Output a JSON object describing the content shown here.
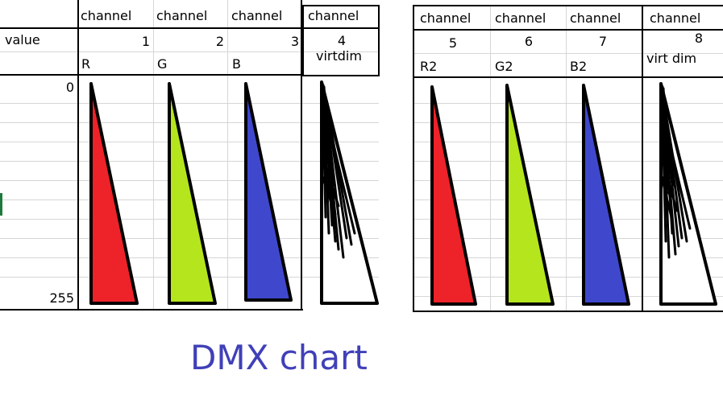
{
  "title": "DMX chart",
  "row_labels": {
    "value": "value",
    "min": "0",
    "max": "255"
  },
  "colors": {
    "red": "#ee2229",
    "green": "#b5e51d",
    "blue": "#3f48cc",
    "white": "#ffffff",
    "title": "#4040b8"
  },
  "channels": [
    {
      "header": "channel",
      "number": "1",
      "label": "R",
      "color": "red"
    },
    {
      "header": "channel",
      "number": "2",
      "label": "G",
      "color": "green"
    },
    {
      "header": "channel",
      "number": "3",
      "label": "B",
      "color": "blue"
    },
    {
      "header": "channel",
      "number": "4",
      "label": "virtdim",
      "color": "white"
    },
    {
      "header": "channel",
      "number": "5",
      "label": "R2",
      "color": "red"
    },
    {
      "header": "channel",
      "number": "6",
      "label": "G2",
      "color": "green"
    },
    {
      "header": "channel",
      "number": "7",
      "label": "B2",
      "color": "blue"
    },
    {
      "header": "channel",
      "number": "8",
      "label": "virt dim",
      "color": "white"
    }
  ]
}
